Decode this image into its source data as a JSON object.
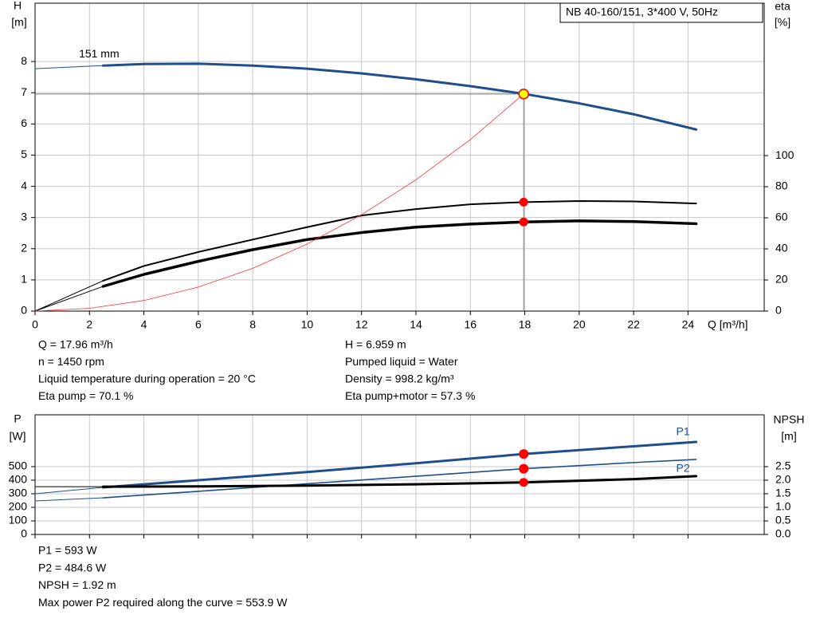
{
  "chart_data": [
    {
      "type": "line",
      "title": "NB 40-160/151, 3*400 V, 50Hz",
      "y_label": "H",
      "y_unit": "[m]",
      "y2_label": "eta",
      "y2_unit": "[%]",
      "x_label": "Q [m³/h]",
      "xlim": [
        0,
        26.8
      ],
      "xticks": [
        0,
        2,
        4,
        6,
        8,
        10,
        12,
        14,
        16,
        18,
        20,
        22,
        24
      ],
      "ylim": [
        0,
        9.87
      ],
      "yticks": [
        0,
        1,
        2,
        3,
        4,
        5,
        6,
        7,
        8
      ],
      "y2lim": [
        0,
        198
      ],
      "y2ticks": [
        0,
        20,
        40,
        60,
        80,
        100
      ],
      "grid": true,
      "series": [
        {
          "name": "151 mm",
          "color": "#1f4e8c",
          "width": 3,
          "lead_in": true,
          "label_position": "above",
          "x": [
            0,
            2.5,
            4,
            6,
            8,
            10,
            12,
            14,
            16,
            18,
            20,
            22,
            24.3
          ],
          "values": [
            7.77,
            7.87,
            7.92,
            7.93,
            7.87,
            7.77,
            7.62,
            7.43,
            7.21,
            6.96,
            6.66,
            6.31,
            5.82
          ]
        },
        {
          "color": "#000000",
          "width": 2,
          "lead_in": true,
          "axis": "y2",
          "x": [
            0,
            2.5,
            4,
            6,
            8,
            10,
            12,
            14,
            16,
            18,
            20,
            22,
            24.3
          ],
          "values": [
            0,
            19.5,
            29,
            38,
            46,
            54,
            61.5,
            65.6,
            68.7,
            70.1,
            70.8,
            70.5,
            69.2
          ]
        },
        {
          "color": "#000000",
          "width": 3.5,
          "lead_in": true,
          "axis": "y2",
          "x": [
            0,
            2.5,
            4,
            6,
            8,
            10,
            12,
            14,
            16,
            18,
            20,
            22,
            24.3
          ],
          "values": [
            0,
            15.9,
            23.6,
            32,
            39.5,
            46,
            50.5,
            54,
            56,
            57.3,
            58,
            57.6,
            56.2
          ]
        },
        {
          "color": "#ff3030",
          "width": 0.8,
          "x": [
            0,
            2,
            4,
            6,
            8,
            10,
            12,
            14,
            16,
            17.96
          ],
          "values": [
            0,
            0.09,
            0.34,
            0.77,
            1.37,
            2.15,
            3.09,
            4.21,
            5.5,
            6.959
          ]
        }
      ],
      "operating_point": {
        "x": 17.96,
        "y": [
          6.959
        ],
        "y2": [
          70.1,
          57.3
        ],
        "color": "#ff0000",
        "duty_color": "#ffff00",
        "crosshair": true
      },
      "notes": [
        "Q = 17.96 m³/h",
        "n = 1450 rpm",
        "Liquid temperature during operation = 20 °C",
        "Eta pump = 70.1 %",
        "H = 6.959 m",
        "Pumped liquid = Water",
        "Density = 998.2 kg/m³",
        "Eta pump+motor = 57.3 %"
      ]
    },
    {
      "type": "line",
      "y_label": "P",
      "y_unit": "[W]",
      "y2_label": "NPSH",
      "y2_unit": "[m]",
      "xlim": [
        0,
        26.8
      ],
      "xticks": [
        0,
        2,
        4,
        6,
        8,
        10,
        12,
        14,
        16,
        18,
        20,
        22,
        24
      ],
      "x_tick_labels": false,
      "ylim": [
        0,
        882
      ],
      "yticks": [
        0,
        100,
        200,
        300,
        400,
        500
      ],
      "y2lim": [
        0,
        4.41
      ],
      "y2ticks": [
        {
          "value": 0,
          "label": "0.0"
        },
        0.5,
        {
          "value": 1,
          "label": "1.0"
        },
        1.5,
        {
          "value": 2,
          "label": "2.0"
        },
        2.5
      ],
      "grid": true,
      "series": [
        {
          "name": "P1",
          "color": "#1f4e8c",
          "width": 3,
          "lead_in": true,
          "label_position": "above",
          "x": [
            0,
            2.5,
            6,
            10,
            14,
            17.96,
            22,
            24.3
          ],
          "values": [
            300,
            347,
            400,
            460,
            525,
            593,
            650,
            682
          ]
        },
        {
          "name": "P2",
          "color": "#1f4e8c",
          "width": 1.6,
          "lead_in": true,
          "label_position": "below",
          "x": [
            0,
            2.5,
            6,
            10,
            14,
            17.96,
            22,
            24.3
          ],
          "values": [
            247,
            270,
            318,
            374,
            429,
            484.6,
            530,
            553
          ]
        },
        {
          "color": "#000000",
          "width": 3,
          "lead_in": true,
          "axis": "y2",
          "x": [
            0,
            2.5,
            6,
            10,
            14,
            17.96,
            22,
            24.3
          ],
          "values": [
            1.76,
            1.76,
            1.77,
            1.8,
            1.85,
            1.92,
            2.04,
            2.15
          ]
        }
      ],
      "operating_point": {
        "x": 17.96,
        "y": [
          593,
          484.6
        ],
        "y2": [
          1.92
        ],
        "color": "#ff0000"
      },
      "notes": [
        "P1 = 593 W",
        "P2 = 484.6 W",
        "NPSH = 1.92 m",
        "Max power P2 required along the curve = 553.9 W"
      ]
    }
  ]
}
